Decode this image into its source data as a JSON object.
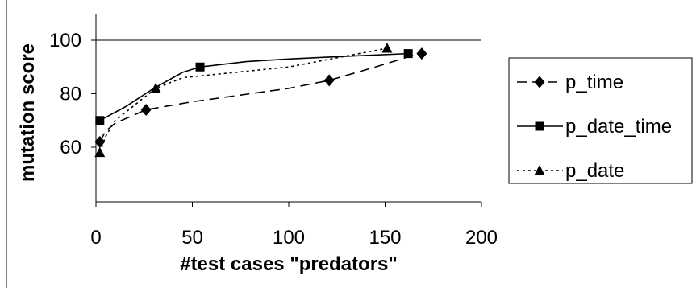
{
  "chart_data": {
    "type": "line",
    "title": "",
    "xlabel": "#test cases \"predators\"",
    "ylabel": "mutation score",
    "xlim": [
      0,
      200
    ],
    "ylim": [
      50,
      100
    ],
    "xticks": [
      "0",
      "50",
      "100",
      "150",
      "200"
    ],
    "yticks": [
      "60",
      "80",
      "100"
    ],
    "grid": false,
    "reference_line_y": 100,
    "legend_position": "right",
    "series": [
      {
        "name": "p_time",
        "line_style": "dashed",
        "marker": "diamond",
        "x": [
          2,
          5,
          10,
          26,
          50,
          100,
          121,
          145,
          163,
          169
        ],
        "y": [
          62,
          66,
          69,
          74,
          77,
          82,
          85,
          90,
          94,
          95
        ],
        "marker_x": [
          2,
          26,
          121,
          169
        ],
        "marker_y": [
          62,
          74,
          85,
          95
        ]
      },
      {
        "name": "p_date_time",
        "line_style": "solid",
        "marker": "square",
        "x": [
          2,
          15,
          30,
          45,
          54,
          78,
          100,
          130,
          162
        ],
        "y": [
          70,
          75,
          82,
          88,
          90,
          92,
          93,
          94,
          95
        ],
        "marker_x": [
          2,
          54,
          162
        ],
        "marker_y": [
          70,
          90,
          95
        ]
      },
      {
        "name": "p_date",
        "line_style": "dotted",
        "marker": "triangle",
        "x": [
          2,
          5,
          10,
          31,
          45,
          100,
          151
        ],
        "y": [
          58,
          64,
          70,
          82,
          86,
          90,
          97
        ],
        "marker_x": [
          2,
          31,
          151
        ],
        "marker_y": [
          58,
          82,
          97
        ]
      }
    ]
  }
}
